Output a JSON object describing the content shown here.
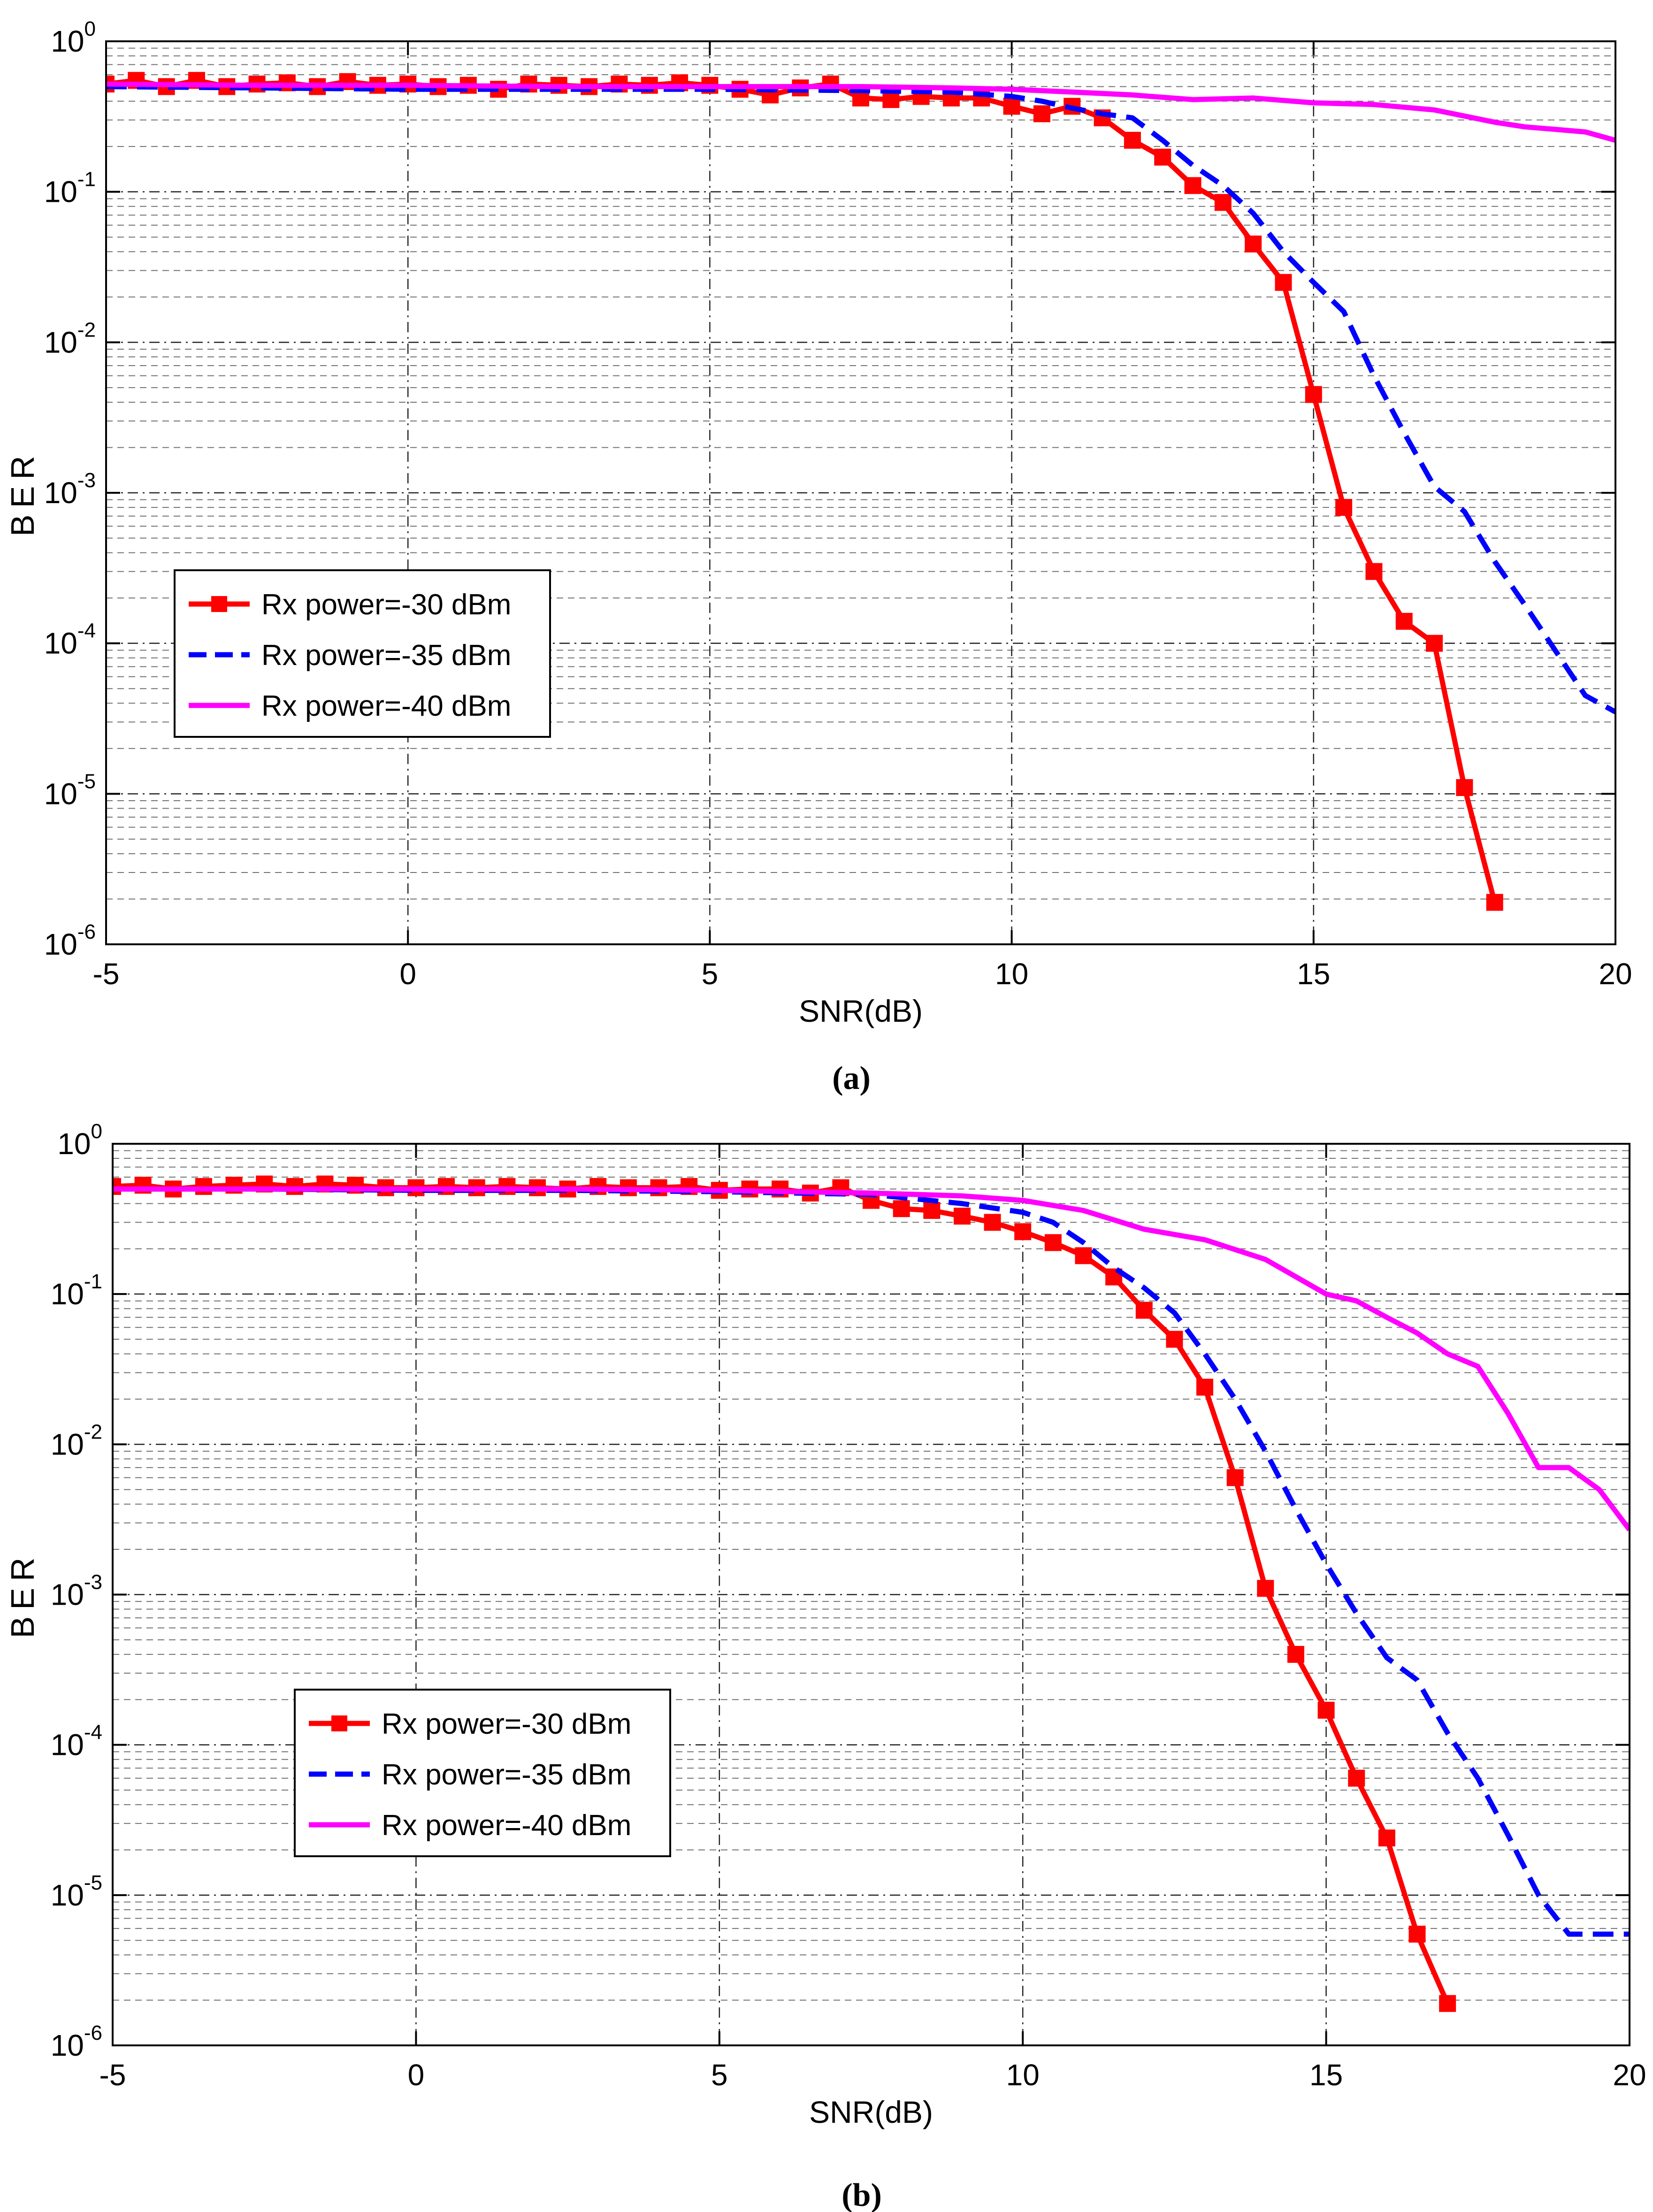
{
  "chart_data": [
    {
      "type": "line",
      "caption": "(a)",
      "xlabel": "SNR(dB)",
      "ylabel": "BER",
      "yscale": "log",
      "xlim": [
        -5,
        20
      ],
      "ylim": [
        1e-06,
        1
      ],
      "x_ticks": [
        "-5",
        "0",
        "5",
        "10",
        "15",
        "20"
      ],
      "y_ticks": [
        {
          "base": "10",
          "exp": "0"
        },
        {
          "base": "10",
          "exp": "-1"
        },
        {
          "base": "10",
          "exp": "-2"
        },
        {
          "base": "10",
          "exp": "-3"
        },
        {
          "base": "10",
          "exp": "-4"
        },
        {
          "base": "10",
          "exp": "-5"
        },
        {
          "base": "10",
          "exp": "-6"
        }
      ],
      "grid": true,
      "legend_position": "left-middle",
      "series": [
        {
          "name": "Rx power=-30 dBm",
          "color": "#ff0000",
          "style": "solid",
          "marker": "square",
          "x": [
            -5,
            -4.5,
            -4,
            -3.5,
            -3,
            -2.5,
            -2,
            -1.5,
            -1,
            -0.5,
            0,
            0.5,
            1,
            1.5,
            2,
            2.5,
            3,
            3.5,
            4,
            4.5,
            5,
            5.5,
            6,
            6.5,
            7,
            7.5,
            8,
            8.5,
            9,
            9.5,
            10,
            10.5,
            11,
            11.5,
            12,
            12.5,
            13,
            13.5,
            14,
            14.5,
            15,
            15.5,
            16,
            16.5,
            17,
            17.5,
            18
          ],
          "y": [
            0.52,
            0.55,
            0.5,
            0.55,
            0.5,
            0.52,
            0.53,
            0.5,
            0.54,
            0.51,
            0.52,
            0.5,
            0.51,
            0.48,
            0.52,
            0.51,
            0.5,
            0.52,
            0.51,
            0.53,
            0.51,
            0.48,
            0.44,
            0.49,
            0.52,
            0.42,
            0.41,
            0.43,
            0.42,
            0.42,
            0.37,
            0.33,
            0.37,
            0.31,
            0.22,
            0.17,
            0.11,
            0.085,
            0.045,
            0.025,
            0.0045,
            0.0008,
            0.0003,
            0.00014,
            0.0001,
            1.1e-05,
            1.9e-06
          ]
        },
        {
          "name": "Rx power=-35 dBm",
          "color": "#0000ff",
          "style": "dashed",
          "marker": "none",
          "x": [
            -5,
            -2.5,
            0,
            2.5,
            5,
            7.5,
            9,
            10,
            10.5,
            11,
            11.5,
            12,
            12.5,
            13,
            13.5,
            14,
            14.5,
            15,
            15.5,
            16,
            16.5,
            17,
            17.5,
            18,
            18.5,
            19,
            19.5,
            20
          ],
          "y": [
            0.5,
            0.49,
            0.48,
            0.48,
            0.48,
            0.47,
            0.46,
            0.43,
            0.4,
            0.36,
            0.33,
            0.31,
            0.22,
            0.15,
            0.11,
            0.072,
            0.04,
            0.025,
            0.016,
            0.006,
            0.0025,
            0.0011,
            0.00075,
            0.00035,
            0.00018,
            9e-05,
            4.5e-05,
            3.5e-05
          ]
        },
        {
          "name": "Rx power=-40 dBm",
          "color": "#ff00ff",
          "style": "solid",
          "marker": "none",
          "x": [
            -5,
            -2.5,
            0,
            2.5,
            5,
            7.5,
            9,
            10,
            11,
            12,
            13,
            14,
            15,
            16,
            17,
            18,
            18.5,
            19,
            19.5,
            20
          ],
          "y": [
            0.52,
            0.51,
            0.51,
            0.5,
            0.5,
            0.5,
            0.49,
            0.48,
            0.46,
            0.44,
            0.41,
            0.42,
            0.39,
            0.38,
            0.35,
            0.29,
            0.27,
            0.26,
            0.25,
            0.22
          ]
        }
      ]
    },
    {
      "type": "line",
      "caption": "(b)",
      "xlabel": "SNR(dB)",
      "ylabel": "BER",
      "yscale": "log",
      "xlim": [
        -5,
        20
      ],
      "ylim": [
        1e-06,
        1
      ],
      "x_ticks": [
        "-5",
        "0",
        "5",
        "10",
        "15",
        "20"
      ],
      "y_ticks": [
        {
          "base": "10",
          "exp": "0"
        },
        {
          "base": "10",
          "exp": "-1"
        },
        {
          "base": "10",
          "exp": "-2"
        },
        {
          "base": "10",
          "exp": "-3"
        },
        {
          "base": "10",
          "exp": "-4"
        },
        {
          "base": "10",
          "exp": "-5"
        },
        {
          "base": "10",
          "exp": "-6"
        }
      ],
      "grid": true,
      "legend_position": "left-lower",
      "series": [
        {
          "name": "Rx power=-30 dBm",
          "color": "#ff0000",
          "style": "solid",
          "marker": "square",
          "x": [
            -5,
            -4.5,
            -4,
            -3.5,
            -3,
            -2.5,
            -2,
            -1.5,
            -1,
            -0.5,
            0,
            0.5,
            1,
            1.5,
            2,
            2.5,
            3,
            3.5,
            4,
            4.5,
            5,
            5.5,
            6,
            6.5,
            7,
            7.5,
            8,
            8.5,
            9,
            9.5,
            10,
            10.5,
            11,
            11.5,
            12,
            12.5,
            13,
            13.5,
            14,
            14.5,
            15,
            15.5,
            16,
            16.5,
            17
          ],
          "y": [
            0.52,
            0.53,
            0.5,
            0.52,
            0.53,
            0.54,
            0.52,
            0.54,
            0.53,
            0.51,
            0.51,
            0.52,
            0.51,
            0.52,
            0.51,
            0.5,
            0.52,
            0.51,
            0.51,
            0.52,
            0.49,
            0.5,
            0.5,
            0.47,
            0.51,
            0.42,
            0.37,
            0.36,
            0.33,
            0.3,
            0.26,
            0.22,
            0.18,
            0.13,
            0.078,
            0.05,
            0.024,
            0.006,
            0.0011,
            0.0004,
            0.00017,
            6e-05,
            2.4e-05,
            5.5e-06,
            1.9e-06
          ]
        },
        {
          "name": "Rx power=-35 dBm",
          "color": "#0000ff",
          "style": "dashed",
          "marker": "none",
          "x": [
            -5,
            -2.5,
            0,
            2.5,
            5,
            7.5,
            9,
            10,
            10.5,
            11,
            11.5,
            12,
            12.5,
            13,
            13.5,
            14,
            14.5,
            15,
            15.5,
            16,
            16.5,
            17,
            17.5,
            18,
            18.5,
            19,
            19.5,
            20
          ],
          "y": [
            0.5,
            0.5,
            0.49,
            0.49,
            0.48,
            0.46,
            0.4,
            0.35,
            0.3,
            0.22,
            0.15,
            0.11,
            0.075,
            0.04,
            0.02,
            0.009,
            0.0037,
            0.0016,
            0.00075,
            0.00038,
            0.00027,
            0.00012,
            6e-05,
            2.5e-05,
            1e-05,
            5.5e-06,
            5.5e-06,
            5.5e-06
          ]
        },
        {
          "name": "Rx power=-40 dBm",
          "color": "#ff00ff",
          "style": "solid",
          "marker": "none",
          "x": [
            -5,
            -2.5,
            0,
            2.5,
            5,
            7.5,
            9,
            10,
            11,
            12,
            13,
            14,
            15,
            15.5,
            16,
            16.5,
            17,
            17.5,
            18,
            18.5,
            19,
            19.5,
            20
          ],
          "y": [
            0.5,
            0.5,
            0.5,
            0.5,
            0.49,
            0.47,
            0.45,
            0.42,
            0.36,
            0.27,
            0.23,
            0.17,
            0.1,
            0.09,
            0.07,
            0.055,
            0.04,
            0.033,
            0.016,
            0.007,
            0.007,
            0.005,
            0.0027
          ]
        }
      ]
    }
  ]
}
